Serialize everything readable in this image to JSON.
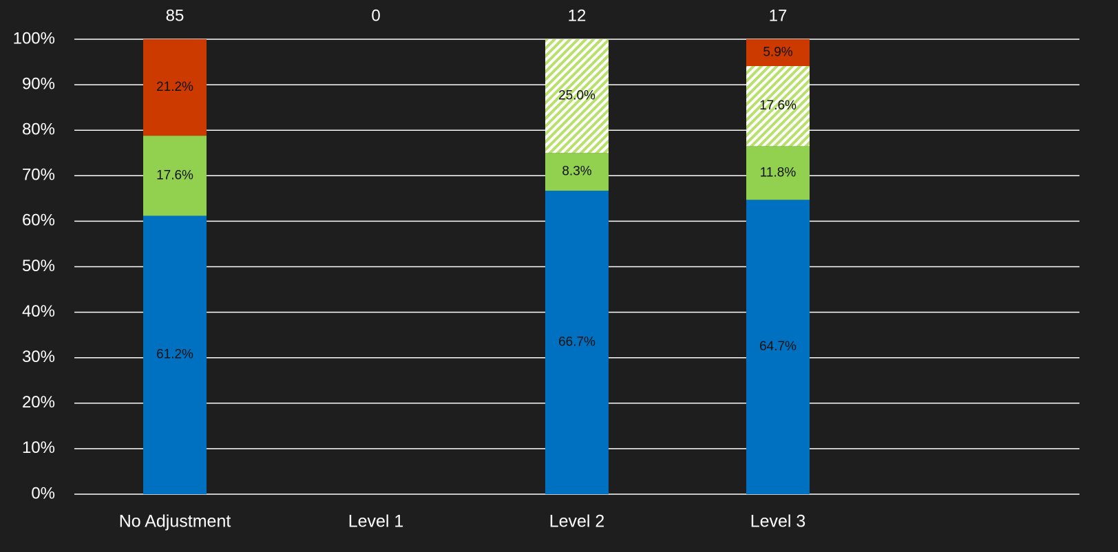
{
  "chart_data": {
    "type": "stacked_bar_100",
    "categories": [
      "No Adjustment",
      "Level 1",
      "Level 2",
      "Level 3",
      null
    ],
    "totals": [
      85,
      0,
      12,
      17,
      null
    ],
    "series": [
      {
        "color": "#0070c0",
        "values": [
          61.2,
          0,
          66.7,
          64.7,
          null
        ],
        "value_labels": [
          "61.2%",
          null,
          "66.7%",
          "64.7%",
          null
        ]
      },
      {
        "color": "#92d050",
        "values": [
          17.6,
          0,
          8.3,
          11.8,
          null
        ],
        "value_labels": [
          "17.6%",
          null,
          "8.3%",
          "11.8%",
          null
        ]
      },
      {
        "color": "#92d050",
        "pattern": "hatch",
        "values": [
          0,
          0,
          25.0,
          17.6,
          null
        ],
        "value_labels": [
          null,
          null,
          "25.0%",
          "17.6%",
          null
        ]
      },
      {
        "color": "#cc3a00",
        "values": [
          21.2,
          0,
          0,
          5.9,
          null
        ],
        "value_labels": [
          "21.2%",
          null,
          null,
          "5.9%",
          null
        ]
      }
    ],
    "ylim": [
      0,
      100
    ],
    "yticks": [
      {
        "value": 0,
        "label": "0%"
      },
      {
        "value": 10,
        "label": "10%"
      },
      {
        "value": 20,
        "label": "20%"
      },
      {
        "value": 30,
        "label": "30%"
      },
      {
        "value": 40,
        "label": "40%"
      },
      {
        "value": 50,
        "label": "50%"
      },
      {
        "value": 60,
        "label": "60%"
      },
      {
        "value": 70,
        "label": "70%"
      },
      {
        "value": 80,
        "label": "80%"
      },
      {
        "value": 90,
        "label": "90%"
      },
      {
        "value": 100,
        "label": "100%"
      }
    ],
    "grid": true
  }
}
